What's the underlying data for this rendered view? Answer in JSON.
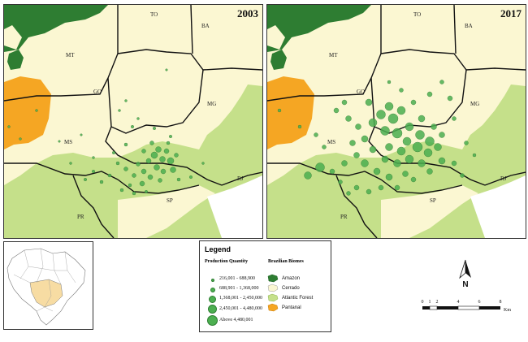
{
  "maps": [
    {
      "year": "2003"
    },
    {
      "year": "2017"
    }
  ],
  "states": [
    "TO",
    "BA",
    "MT",
    "GO",
    "MG",
    "MS",
    "SP",
    "PR",
    "RJ"
  ],
  "legend": {
    "title": "Legend",
    "production_title": "Production Quantity",
    "biomes_title": "Brazilian Biomes",
    "production_classes": [
      "216,001 - 688,900",
      "688,901 - 1,368,000",
      "1,368,001 - 2,450,000",
      "2,450,001 - 4,480,000",
      "Above 4,480,001"
    ],
    "biomes": [
      {
        "name": "Amazon",
        "color": "#2e7d32"
      },
      {
        "name": "Cerrado",
        "color": "#fbf7d2"
      },
      {
        "name": "Atlantic Forest",
        "color": "#c5e08a"
      },
      {
        "name": "Pantanal",
        "color": "#f5a623"
      }
    ]
  },
  "north_label": "N",
  "scale": {
    "ticks": [
      "0",
      "1",
      "2",
      "4",
      "6",
      "8"
    ],
    "unit": "Km"
  },
  "colors": {
    "point": "#4caf50",
    "point_stroke": "#2e7d32",
    "border": "#111111",
    "water": "#ffffff"
  }
}
